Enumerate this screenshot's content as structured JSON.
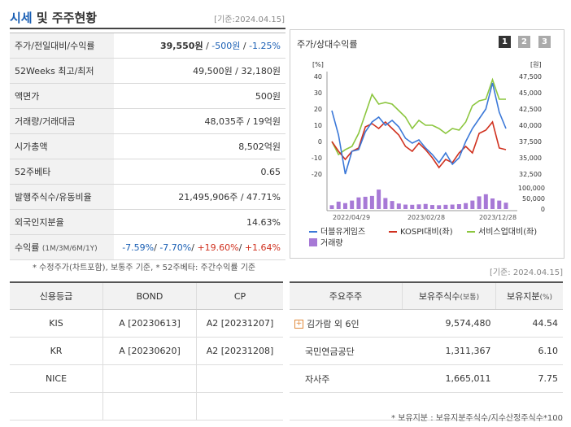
{
  "header": {
    "title_prefix": "시세",
    "title_rest": " 및 주주현황",
    "date": "[기준:2024.04.15]"
  },
  "quote": {
    "rows": [
      {
        "label": "주가/전일대비/수익률"
      },
      {
        "label": "52Weeks 최고/최저",
        "value": "49,500원 / 32,180원"
      },
      {
        "label": "액면가",
        "value": "500원"
      },
      {
        "label": "거래량/거래대금",
        "value": "48,035주 / 19억원"
      },
      {
        "label": "시가총액",
        "value": "8,502억원"
      },
      {
        "label": "52주베타",
        "value": "0.65"
      },
      {
        "label": "발행주식수/유동비율",
        "value": "21,495,906주 / 47.71%"
      },
      {
        "label": "외국인지분율",
        "value": "14.63%"
      },
      {
        "label": "수익률",
        "sublabel": "(1M/3M/6M/1Y)"
      }
    ],
    "price": "39,550원",
    "sep1": " / ",
    "change": "-500원",
    "sep2": " / ",
    "change_pct": "-1.25%",
    "returns": {
      "m1": "-7.59%",
      "m3": "-7.70%",
      "m6": "+19.60%",
      "y1": "+1.64%",
      "sep": "/ "
    }
  },
  "note1": "* 수정주가(차트포함), 보통주 기준, * 52주베타: 주간수익률 기준",
  "chart": {
    "title": "주가/상대수익률",
    "pages": [
      "1",
      "2",
      "3"
    ],
    "left_unit": "[%]",
    "right_unit": "[원]",
    "legend": {
      "s1": "더블유게임즈",
      "s2": "KOSPI대비(좌)",
      "s3": "서비스업대비(좌)",
      "s4": "거래량"
    },
    "colors": {
      "s1": "#3b78d8",
      "s2": "#d0311f",
      "s3": "#8cc63f",
      "vol": "#a779d6"
    }
  },
  "chart_data": {
    "type": "line",
    "left_ticks": [
      "40",
      "30",
      "20",
      "10",
      "0",
      "-10",
      "-20"
    ],
    "left_ylim": [
      -20,
      40
    ],
    "right_ticks": [
      "47,500",
      "45,000",
      "42,500",
      "40,000",
      "37,500",
      "35,000",
      "32,500"
    ],
    "volume_ticks": [
      "100,000",
      "50,000",
      "0"
    ],
    "x_ticks": [
      "2022/04/29",
      "2023/02/28",
      "2023/12/28"
    ],
    "series": [
      {
        "name": "더블유게임즈",
        "values": [
          19,
          4,
          -20,
          -6,
          -5,
          6,
          12,
          15,
          10,
          13,
          9,
          2,
          -1,
          1,
          -4,
          -8,
          -13,
          -7,
          -14,
          -10,
          0,
          8,
          14,
          20,
          36,
          18,
          8
        ]
      },
      {
        "name": "KOSPI대비(좌)",
        "values": [
          0,
          -6,
          -11,
          -6,
          -4,
          9,
          11,
          8,
          12,
          8,
          4,
          -3,
          -6,
          -1,
          -5,
          -10,
          -16,
          -11,
          -13,
          -7,
          -3,
          -7,
          5,
          7,
          12,
          -4,
          -5
        ]
      },
      {
        "name": "서비스업대비(좌)",
        "values": [
          0,
          -8,
          -5,
          -3,
          5,
          17,
          29,
          23,
          24,
          23,
          19,
          15,
          8,
          13,
          10,
          10,
          8,
          5,
          8,
          7,
          12,
          22,
          25,
          26,
          38,
          26,
          26
        ]
      },
      {
        "name": "거래량",
        "values": [
          18000,
          35000,
          28000,
          40000,
          55000,
          58000,
          62000,
          92000,
          52000,
          38000,
          26000,
          21000,
          20000,
          22000,
          24000,
          19000,
          18000,
          20000,
          21000,
          23000,
          28000,
          40000,
          60000,
          70000,
          50000,
          40000,
          30000
        ]
      }
    ]
  },
  "note_date": "[기준: 2024.04.15]",
  "credit": {
    "headers": [
      "신용등급",
      "BOND",
      "CP"
    ],
    "rows": [
      [
        "KIS",
        "A [20230613]",
        "A2 [20231207]"
      ],
      [
        "KR",
        "A [20230620]",
        "A2 [20231208]"
      ],
      [
        "NICE",
        "",
        ""
      ],
      [
        "",
        "",
        ""
      ]
    ]
  },
  "holders": {
    "headers": [
      "주요주주",
      "보유주식수",
      "(보통)",
      "보유지분",
      "(%)"
    ],
    "rows": [
      {
        "name": "김가람 외 6인",
        "shares": "9,574,480",
        "pct": "44.54"
      },
      {
        "name": "국민연금공단",
        "shares": "1,311,367",
        "pct": "6.10"
      },
      {
        "name": "자사주",
        "shares": "1,665,011",
        "pct": "7.75"
      },
      {
        "name": "",
        "shares": "",
        "pct": ""
      }
    ]
  },
  "note2": "* 보유지분 : 보유지분주식수/지수산정주식수*100"
}
